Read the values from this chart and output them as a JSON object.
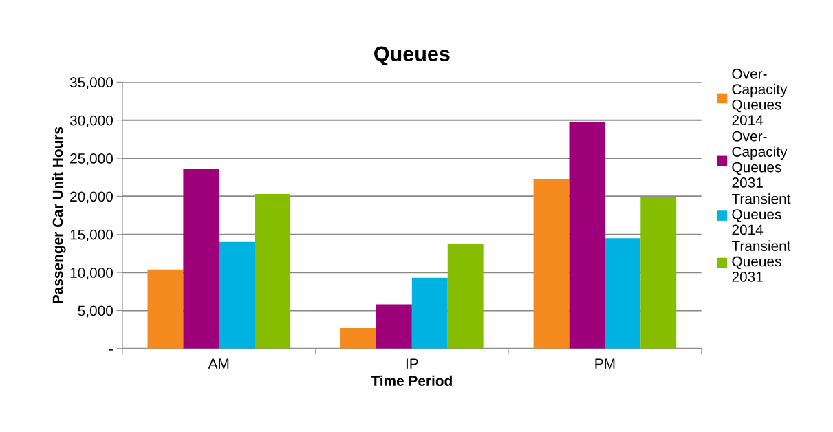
{
  "chart_data": {
    "type": "bar",
    "title": "Queues",
    "xlabel": "Time Period",
    "ylabel": "Passenger Car Unit Hours",
    "categories": [
      "AM",
      "IP",
      "PM"
    ],
    "series": [
      {
        "name": "Over-Capacity Queues 2014",
        "color": "#f58b1f",
        "values": [
          10400,
          2700,
          22300
        ]
      },
      {
        "name": "Over-Capacity Queues 2031",
        "color": "#9e0079",
        "values": [
          23600,
          5800,
          29800
        ]
      },
      {
        "name": "Transient Queues 2014",
        "color": "#00b2e1",
        "values": [
          14000,
          9300,
          14500
        ]
      },
      {
        "name": "Transient Queues 2031",
        "color": "#86bd00",
        "values": [
          20300,
          13800,
          19900
        ]
      }
    ],
    "ylim": [
      0,
      35000
    ],
    "yticks": [
      {
        "value": 0,
        "label": "-"
      },
      {
        "value": 5000,
        "label": "5,000"
      },
      {
        "value": 10000,
        "label": "10,000"
      },
      {
        "value": 15000,
        "label": "15,000"
      },
      {
        "value": 20000,
        "label": "20,000"
      },
      {
        "value": 25000,
        "label": "25,000"
      },
      {
        "value": 30000,
        "label": "30,000"
      },
      {
        "value": 35000,
        "label": "35,000"
      }
    ],
    "grid": "y",
    "legend": "right"
  }
}
